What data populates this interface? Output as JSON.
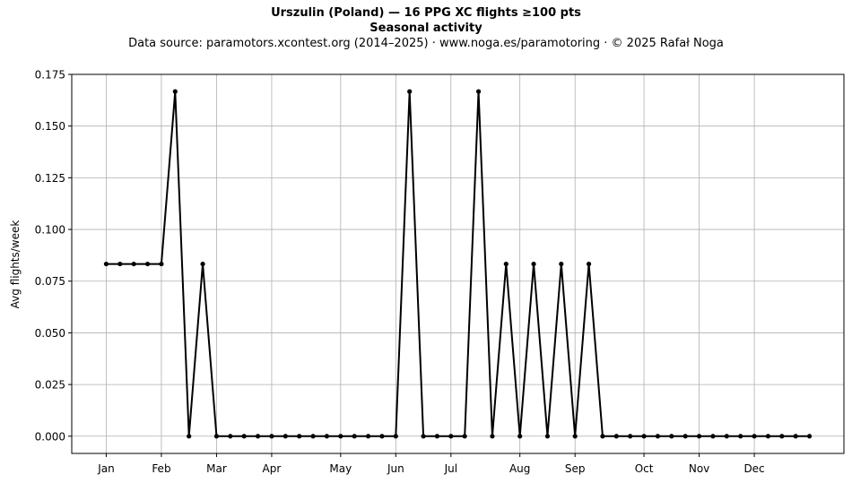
{
  "chart_data": {
    "type": "line",
    "title": "Urszulin (Poland)  —  16 PPG XC flights ≥100 pts",
    "subtitle": "Seasonal activity",
    "source": "Data source: paramotors.xcontest.org (2014–2025)  ·  www.noga.es/paramotoring  ·  © 2025 Rafał Noga",
    "xlabel": "",
    "ylabel": "Avg flights/week",
    "xlim": [
      -2.5,
      53.5
    ],
    "ylim": [
      -0.00833,
      0.175
    ],
    "x_ticks": [
      {
        "x": 0,
        "label": "Jan"
      },
      {
        "x": 4,
        "label": "Feb"
      },
      {
        "x": 8,
        "label": "Mar"
      },
      {
        "x": 12,
        "label": "Apr"
      },
      {
        "x": 17,
        "label": "May"
      },
      {
        "x": 21,
        "label": "Jun"
      },
      {
        "x": 25,
        "label": "Jul"
      },
      {
        "x": 30,
        "label": "Aug"
      },
      {
        "x": 34,
        "label": "Sep"
      },
      {
        "x": 39,
        "label": "Oct"
      },
      {
        "x": 43,
        "label": "Nov"
      },
      {
        "x": 47,
        "label": "Dec"
      }
    ],
    "y_ticks": [
      "0.000",
      "0.025",
      "0.050",
      "0.075",
      "0.100",
      "0.125",
      "0.150",
      "0.175"
    ],
    "grid": true,
    "series": [
      {
        "color": "#000000",
        "x": [
          0,
          1,
          2,
          3,
          4,
          5,
          6,
          7,
          8,
          9,
          10,
          11,
          12,
          13,
          14,
          15,
          16,
          17,
          18,
          19,
          20,
          21,
          22,
          23,
          24,
          25,
          26,
          27,
          28,
          29,
          30,
          31,
          32,
          33,
          34,
          35,
          36,
          37,
          38,
          39,
          40,
          41,
          42,
          43,
          44,
          45,
          46,
          47,
          48,
          49,
          50,
          51
        ],
        "y": [
          0.0833,
          0.0833,
          0.0833,
          0.0833,
          0.0833,
          0.1667,
          0,
          0.0833,
          0,
          0,
          0,
          0,
          0,
          0,
          0,
          0,
          0,
          0,
          0,
          0,
          0,
          0,
          0.1667,
          0,
          0,
          0,
          0,
          0.1667,
          0,
          0.0833,
          0,
          0.0833,
          0,
          0.0833,
          0,
          0.0833,
          0,
          0,
          0,
          0,
          0,
          0,
          0,
          0,
          0,
          0,
          0,
          0,
          0,
          0,
          0,
          0
        ]
      }
    ]
  }
}
